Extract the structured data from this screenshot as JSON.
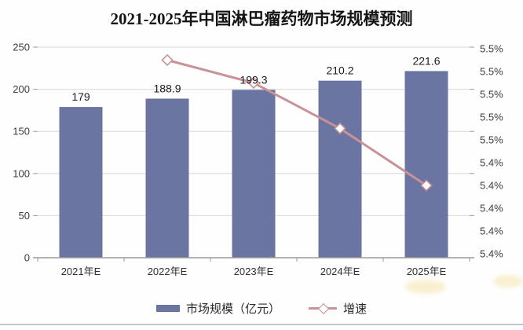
{
  "chart_data": {
    "type": "bar+line",
    "title": "2021-2025年中国淋巴瘤药物市场规模预测",
    "categories": [
      "2021年E",
      "2022年E",
      "2023年E",
      "2024年E",
      "2025年E"
    ],
    "series": [
      {
        "name": "市场规模（亿元）",
        "type": "bar",
        "axis": "left",
        "color": "#6a76a1",
        "values": [
          179,
          188.9,
          199.3,
          210.2,
          221.6
        ],
        "labels": [
          "179",
          "188.9",
          "199.3",
          "210.2",
          "221.6"
        ]
      },
      {
        "name": "增速",
        "type": "line",
        "axis": "right",
        "color": "#c89298",
        "marker": "white-diamond",
        "unit": "%",
        "values": [
          null,
          5.53,
          5.51,
          5.47,
          5.42
        ]
      }
    ],
    "left_axis": {
      "ticks": [
        "250",
        "200",
        "150",
        "100",
        "50",
        "0"
      ],
      "min": 0,
      "max": 250
    },
    "right_axis": {
      "ticks": [
        "5.5%",
        "5.5%",
        "5.5%",
        "5.5%",
        "5.5%",
        "5.4%",
        "5.4%",
        "5.4%",
        "5.4%",
        "5.4%"
      ],
      "min": 5.36,
      "max": 5.54
    },
    "grid": true,
    "legend_position": "bottom"
  },
  "colors": {
    "bar": "#6a76a1",
    "line": "#c89298",
    "marker_fill": "#ffffff",
    "grid": "#d8d8d8",
    "axis": "#9a9a9a",
    "tick_label": "#3c3c3c",
    "category_label": "#2f2f2f",
    "value_label": "#1b1b1b",
    "title": "#141414"
  }
}
